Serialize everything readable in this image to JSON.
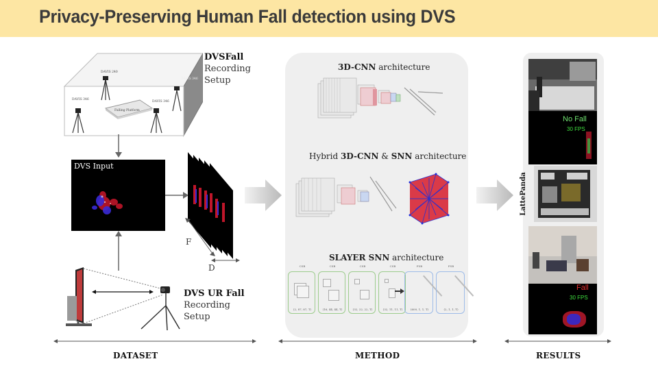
{
  "title": "Privacy-Preserving Human Fall detection using DVS",
  "dataset": {
    "dvsfall_bold": "DVSFall",
    "dvsfall_rest1": "Recording",
    "dvsfall_rest2": "Setup",
    "room_labels": {
      "cam1": "DAVIS 240",
      "cam2": "DAVIS 346",
      "cam3": "DAVIS 346",
      "cam4": "DAVIS 346",
      "platform": "Falling Platform"
    },
    "dvs_input_label": "DVS Input",
    "axis_f": "F",
    "axis_d": "D",
    "urfall_bold": "DVS UR Fall",
    "urfall_rest1": "Recording",
    "urfall_rest2": "Setup"
  },
  "method": {
    "arch1_bold": "3D-CNN",
    "arch1_rest": " architecture",
    "arch2_pre": "Hybrid ",
    "arch2_bold1": "3D-CNN",
    "arch2_mid": " & ",
    "arch2_bold2": "SNN",
    "arch2_rest": " architecture",
    "arch3_bold": "SLAYER SNN",
    "arch3_rest": " architecture",
    "slayer_blocks": [
      {
        "head": "CSB",
        "dims": "(2, 87, 87, T)"
      },
      {
        "head": "CSB",
        "dims": "(16, 44, 44, T)"
      },
      {
        "head": "CSB",
        "dims": "(32, 22, 22, T)"
      },
      {
        "head": "CSB",
        "dims": "(32, 11, 11, T)"
      },
      {
        "head": "FSB",
        "dims": "(600, 1, 1, T)"
      },
      {
        "head": "FSB",
        "dims": "(2, 1, 1, T)"
      }
    ]
  },
  "results": {
    "no_fall_label": "No Fall",
    "no_fall_fps": "30 FPS",
    "board_label": "LattePanda",
    "fall_label": "Fall",
    "fall_fps": "30 FPS"
  },
  "sections": {
    "dataset": "DATASET",
    "method": "METHOD",
    "results": "RESULTS"
  },
  "colors": {
    "title_bg": "#fde6a3",
    "panel_bg": "#efefef",
    "no_fall_text": "#6fe06f",
    "fall_text": "#e83030",
    "fps_text": "#3fe03f"
  }
}
